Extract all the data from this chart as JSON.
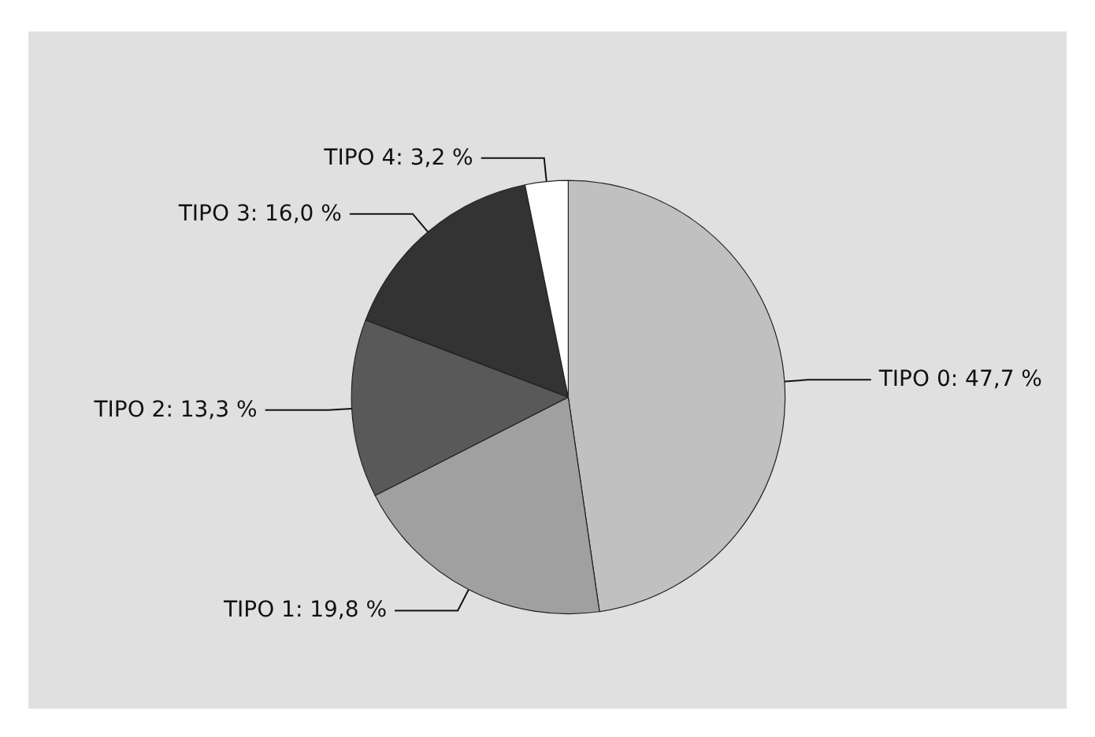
{
  "chart_data": {
    "type": "pie",
    "categories": [
      "TIPO 0",
      "TIPO 1",
      "TIPO 2",
      "TIPO 3",
      "TIPO 4"
    ],
    "values": [
      47.7,
      19.8,
      13.3,
      16.0,
      3.2
    ],
    "value_labels": [
      "47,7 %",
      "19,8 %",
      "13,3 %",
      "16,0 %",
      "3,2 %"
    ],
    "colors": [
      "#c0c0c0",
      "#a0a0a0",
      "#595959",
      "#333333",
      "#ffffff"
    ],
    "legend": false
  }
}
